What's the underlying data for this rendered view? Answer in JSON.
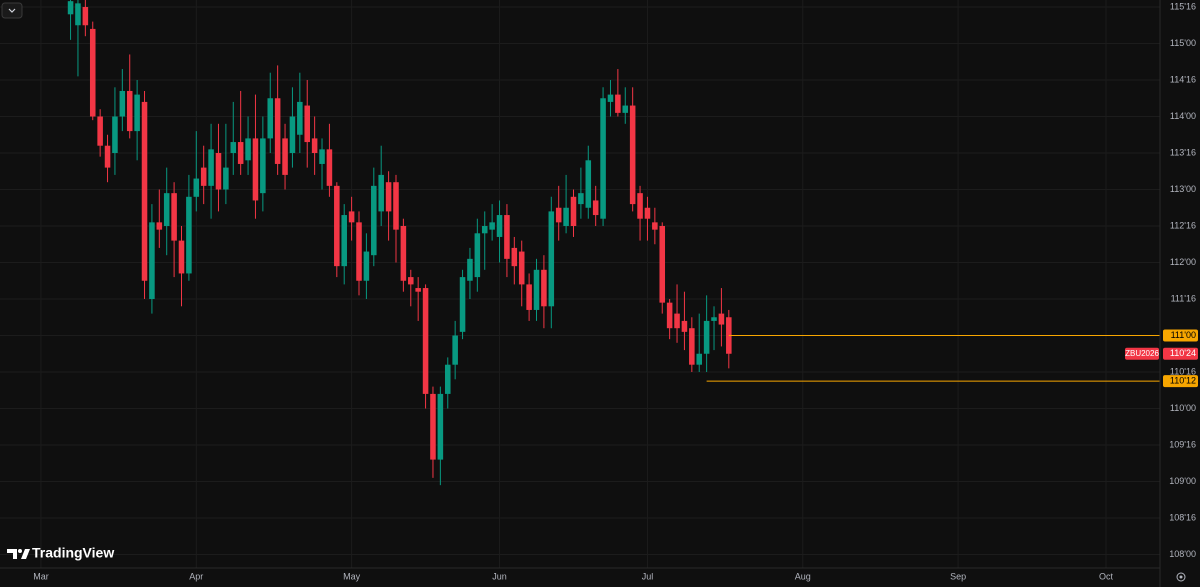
{
  "brand": "TradingView",
  "chart_data": {
    "type": "candlestick",
    "symbol": "ZBU2026",
    "up_color": "#089981",
    "down_color": "#f23645",
    "level_color": "#f7a600",
    "grid": true,
    "x": [
      4,
      5,
      6,
      7,
      8,
      9,
      10,
      11,
      12,
      13,
      14,
      15,
      16,
      17,
      18,
      19,
      20,
      21,
      22,
      23,
      24,
      25,
      26,
      27,
      28,
      29,
      30,
      31,
      32,
      33,
      34,
      35,
      36,
      37,
      38,
      39,
      40,
      41,
      42,
      43,
      44,
      45,
      46,
      47,
      48,
      49,
      50,
      51,
      52,
      53,
      54,
      55,
      56,
      57,
      58,
      59,
      60,
      61,
      62,
      63,
      64,
      65,
      66,
      67,
      68,
      69,
      70,
      71,
      72,
      73,
      74,
      75,
      76,
      77,
      78,
      79,
      80,
      81,
      82,
      83,
      84,
      85,
      86,
      87,
      88,
      89,
      90,
      91,
      92,
      93
    ],
    "open": [
      115.4,
      115.25,
      115.5,
      115.2,
      114.0,
      113.6,
      113.5,
      114.0,
      114.35,
      113.8,
      114.2,
      111.5,
      112.55,
      112.5,
      112.95,
      112.3,
      111.85,
      112.9,
      113.3,
      113.05,
      113.5,
      113.0,
      113.5,
      113.65,
      113.4,
      113.7,
      112.95,
      113.7,
      114.25,
      113.7,
      113.5,
      113.75,
      114.15,
      113.7,
      113.35,
      113.55,
      113.05,
      111.95,
      112.7,
      112.55,
      111.75,
      112.1,
      112.7,
      113.1,
      113.1,
      112.5,
      111.8,
      111.65,
      111.65,
      110.2,
      109.3,
      110.2,
      110.6,
      111.05,
      111.75,
      111.8,
      112.4,
      112.45,
      112.35,
      112.65,
      112.2,
      112.15,
      111.7,
      111.35,
      111.9,
      111.4,
      112.75,
      112.5,
      112.9,
      112.8,
      112.75,
      112.85,
      112.6,
      114.2,
      114.3,
      114.05,
      114.15,
      112.95,
      112.75,
      112.55,
      112.5,
      111.45,
      111.3,
      111.2,
      111.1,
      110.6,
      110.75,
      111.2,
      111.3,
      111.25
    ],
    "high": [
      115.6,
      115.6,
      115.6,
      115.3,
      114.1,
      113.75,
      114.4,
      114.65,
      114.85,
      114.5,
      114.35,
      112.8,
      113.0,
      113.3,
      113.1,
      112.5,
      113.2,
      113.8,
      113.6,
      113.9,
      113.9,
      113.9,
      114.2,
      114.35,
      114.0,
      114.3,
      114.0,
      114.6,
      114.7,
      113.9,
      114.4,
      114.6,
      114.5,
      114.0,
      113.7,
      113.9,
      113.1,
      112.8,
      112.9,
      112.7,
      112.4,
      113.3,
      113.6,
      113.25,
      113.2,
      112.6,
      111.9,
      111.8,
      111.7,
      110.3,
      110.3,
      110.7,
      111.2,
      111.9,
      112.2,
      112.6,
      112.7,
      112.8,
      112.85,
      112.8,
      112.35,
      112.3,
      111.85,
      112.05,
      112.1,
      112.9,
      113.05,
      113.2,
      113.0,
      113.3,
      113.6,
      113.05,
      114.4,
      114.5,
      114.65,
      114.4,
      114.4,
      113.05,
      112.9,
      112.75,
      112.55,
      111.5,
      111.7,
      111.6,
      111.25,
      111.3,
      111.55,
      111.4,
      111.65,
      111.35
    ],
    "low": [
      115.05,
      114.55,
      115.1,
      113.95,
      113.45,
      113.1,
      113.2,
      113.8,
      113.7,
      113.4,
      111.5,
      111.3,
      112.2,
      112.1,
      111.8,
      111.4,
      111.75,
      112.7,
      112.8,
      112.6,
      112.7,
      112.8,
      113.2,
      113.2,
      113.2,
      112.6,
      112.7,
      113.5,
      113.2,
      113.0,
      113.3,
      113.5,
      113.3,
      113.2,
      113.0,
      112.9,
      111.8,
      111.7,
      112.3,
      111.55,
      111.5,
      111.95,
      112.5,
      112.3,
      112.0,
      111.6,
      111.4,
      111.2,
      110.0,
      109.05,
      108.95,
      110.0,
      110.4,
      110.95,
      111.5,
      111.6,
      111.9,
      112.3,
      112.0,
      111.8,
      111.7,
      111.4,
      111.2,
      111.2,
      111.1,
      111.1,
      112.3,
      112.4,
      112.35,
      112.6,
      112.6,
      112.5,
      112.5,
      114.0,
      114.0,
      113.9,
      112.7,
      112.3,
      112.3,
      112.25,
      111.3,
      110.95,
      110.9,
      110.8,
      110.5,
      110.5,
      110.5,
      110.8,
      110.85,
      110.55
    ],
    "close": [
      115.58,
      115.55,
      115.25,
      114.0,
      113.6,
      113.3,
      114.0,
      114.35,
      113.8,
      114.3,
      111.75,
      112.55,
      112.45,
      112.95,
      112.3,
      111.85,
      112.9,
      113.15,
      113.05,
      113.55,
      113.0,
      113.3,
      113.65,
      113.35,
      113.7,
      112.85,
      113.7,
      114.25,
      113.35,
      113.2,
      114.0,
      114.2,
      113.65,
      113.5,
      113.55,
      113.05,
      111.95,
      112.65,
      112.55,
      111.75,
      112.15,
      113.05,
      113.2,
      112.7,
      112.45,
      111.75,
      111.7,
      111.6,
      110.2,
      109.3,
      110.2,
      110.6,
      111.0,
      111.8,
      112.05,
      112.4,
      112.5,
      112.55,
      112.65,
      112.05,
      111.95,
      111.7,
      111.35,
      111.9,
      111.4,
      112.7,
      112.55,
      112.75,
      112.5,
      112.95,
      113.4,
      112.65,
      114.25,
      114.3,
      114.05,
      114.15,
      112.8,
      112.6,
      112.6,
      112.45,
      111.45,
      111.1,
      111.1,
      111.05,
      110.6,
      110.75,
      111.2,
      111.25,
      111.15,
      110.75
    ],
    "levels": [
      {
        "value": 111,
        "label": "111'00",
        "from": 93
      },
      {
        "value": 110.375,
        "label": "110'12",
        "from": 90
      }
    ],
    "last": {
      "value": 110.75,
      "label": "110'24"
    },
    "xlim": [
      -5.54,
      151.3
    ],
    "xticks": [
      {
        "value": 0,
        "label": "Mar"
      },
      {
        "value": 21,
        "label": "Apr"
      },
      {
        "value": 42,
        "label": "May"
      },
      {
        "value": 62,
        "label": "Jun"
      },
      {
        "value": 82,
        "label": "Jul"
      },
      {
        "value": 103,
        "label": "Aug"
      },
      {
        "value": 124,
        "label": "Sep"
      },
      {
        "value": 144,
        "label": "Oct"
      }
    ],
    "ylim": [
      107.815,
      115.596
    ],
    "yticks": [
      {
        "value": 108,
        "label": "108'00"
      },
      {
        "value": 108.5,
        "label": "108'16"
      },
      {
        "value": 109,
        "label": "109'00"
      },
      {
        "value": 109.5,
        "label": "109'16"
      },
      {
        "value": 110,
        "label": "110'00"
      },
      {
        "value": 110.5,
        "label": "110'16"
      },
      {
        "value": 111,
        "label": "111'00"
      },
      {
        "value": 111.5,
        "label": "111'16"
      },
      {
        "value": 112,
        "label": "112'00"
      },
      {
        "value": 112.5,
        "label": "112'16"
      },
      {
        "value": 113,
        "label": "113'00"
      },
      {
        "value": 113.5,
        "label": "113'16"
      },
      {
        "value": 114,
        "label": "114'00"
      },
      {
        "value": 114.5,
        "label": "114'16"
      },
      {
        "value": 115,
        "label": "115'00"
      },
      {
        "value": 115.5,
        "label": "115'16"
      }
    ]
  }
}
